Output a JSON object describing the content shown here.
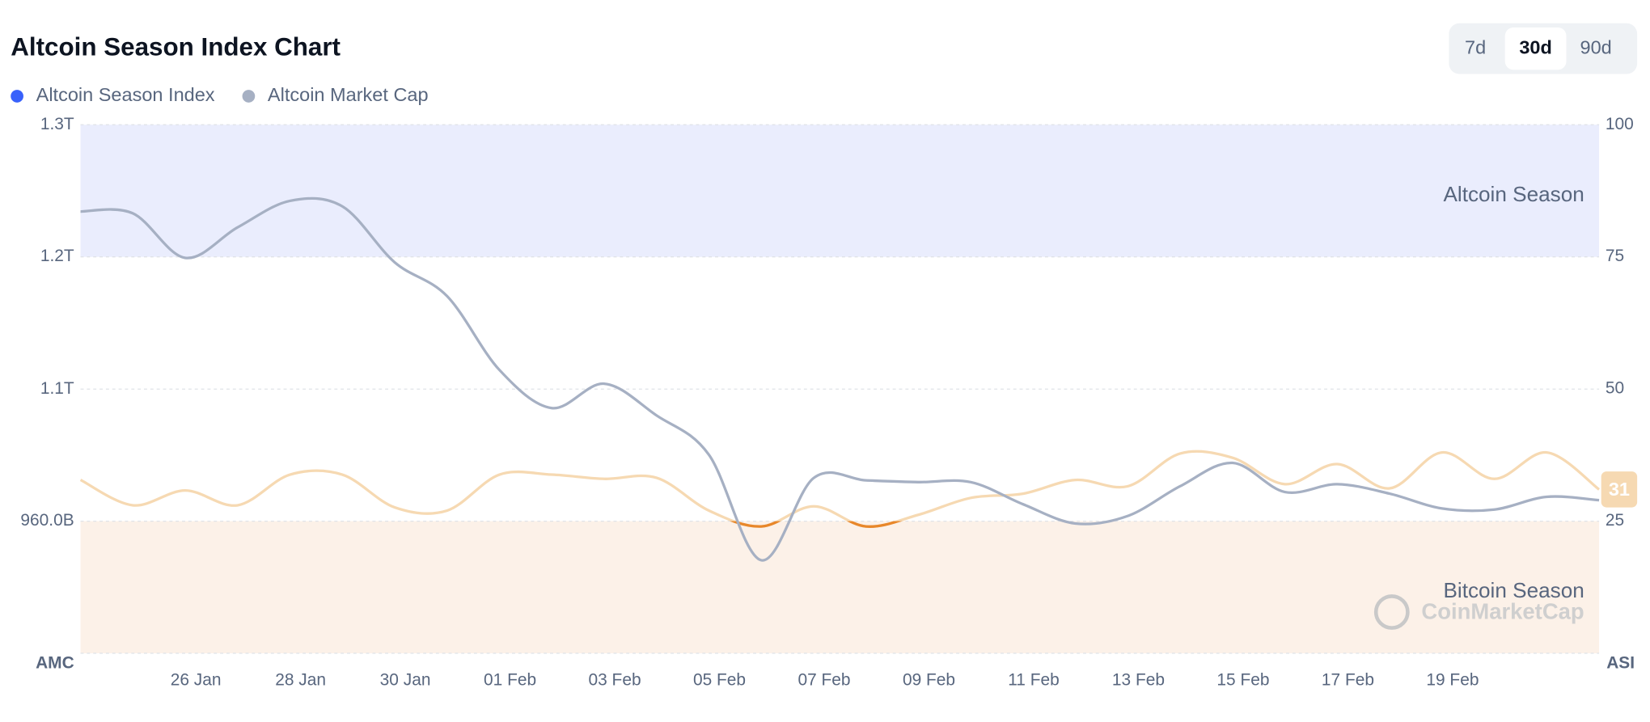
{
  "chart_data": {
    "type": "line",
    "title": "Altcoin Season Index Chart",
    "range_buttons": [
      "7d",
      "30d",
      "90d"
    ],
    "active_range": "30d",
    "watermark": "CoinMarketCap",
    "y_axis_label": "AMC",
    "y2_axis_label": "ASI",
    "categories": [
      null,
      null,
      "26 Jan",
      null,
      "28 Jan",
      null,
      "30 Jan",
      null,
      "01 Feb",
      null,
      "03 Feb",
      null,
      "05 Feb",
      null,
      "07 Feb",
      null,
      "09 Feb",
      null,
      "11 Feb",
      null,
      "13 Feb",
      null,
      "15 Feb",
      null,
      "17 Feb",
      null,
      "19 Feb",
      null,
      null,
      null
    ],
    "ylim": [
      846.7,
      1300
    ],
    "yticks": [
      {
        "value": 960,
        "label": "960.0B"
      },
      {
        "value": 1073.3,
        "label": "1.1T"
      },
      {
        "value": 1186.7,
        "label": "1.2T"
      },
      {
        "value": 1300,
        "label": "1.3T"
      }
    ],
    "y2lim": [
      0,
      100
    ],
    "y2ticks": [
      25,
      50,
      75,
      100
    ],
    "grid": true,
    "zones": [
      {
        "label": "Altcoin Season",
        "from": 75,
        "to": 100,
        "color": "#eaedfd"
      },
      {
        "label": "Bitcoin Season",
        "from": 0,
        "to": 25,
        "color": "#fcf1e8"
      }
    ],
    "series": [
      {
        "name": "Altcoin Season Index",
        "color": "#3861fb",
        "line_color": "#f6d9b2",
        "below_color": "#e8872a",
        "axis": "y2",
        "values": [
          32.8,
          28,
          30.8,
          28,
          33.8,
          33.8,
          27.6,
          27,
          33.8,
          33.8,
          33,
          33.2,
          27,
          24,
          27.8,
          24,
          26.2,
          29.4,
          30.2,
          32.8,
          31.6,
          37.8,
          37,
          32,
          35.8,
          31.2,
          38,
          33,
          38,
          31
        ]
      },
      {
        "name": "Altcoin Market Cap",
        "color": "#a6b0c3",
        "values": [
          1225.6,
          1224,
          1185.8,
          1212,
          1234.7,
          1230,
          1182,
          1153,
          1089.7,
          1057,
          1077.9,
          1050.7,
          1017,
          926.5,
          997,
          995,
          993.5,
          993.5,
          974.5,
          958,
          964.5,
          990,
          1010,
          985,
          991.7,
          983.6,
          970.9,
          970,
          980.9,
          978
        ]
      }
    ]
  }
}
